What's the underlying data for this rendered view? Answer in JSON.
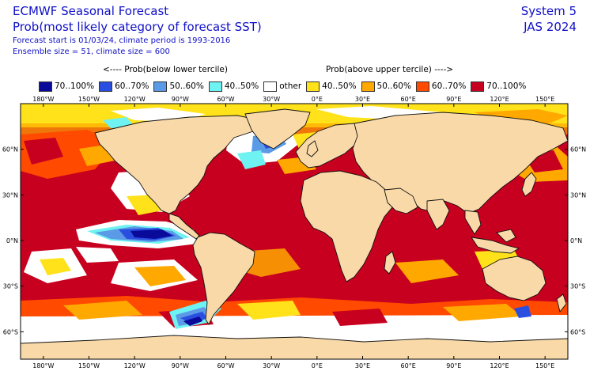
{
  "header": {
    "title": "ECMWF Seasonal Forecast",
    "subtitle": "Prob(most likely category of forecast SST)",
    "info_line1": "Forecast start is 01/03/24, climate period is 1993-2016",
    "info_line2": "Ensemble size = 51, climate size = 600",
    "system": "System 5",
    "period": "JAS 2024"
  },
  "legend": {
    "below_label": "<---- Prob(below lower tercile)",
    "above_label": "Prob(above upper tercile) ---->",
    "items": [
      {
        "label": "70..100%",
        "color": "#0a0a9a"
      },
      {
        "label": "60..70%",
        "color": "#2a4ee0"
      },
      {
        "label": "50..60%",
        "color": "#5a9ae6"
      },
      {
        "label": "40..50%",
        "color": "#6ef2f2"
      },
      {
        "label": "other",
        "color": "#ffffff"
      },
      {
        "label": "40..50%",
        "color": "#ffe21a"
      },
      {
        "label": "50..60%",
        "color": "#ffa800"
      },
      {
        "label": "60..70%",
        "color": "#ff4a00"
      },
      {
        "label": "70..100%",
        "color": "#c80020"
      }
    ]
  },
  "axes": {
    "lon_labels": [
      "180°W",
      "150°W",
      "120°W",
      "90°W",
      "60°W",
      "30°W",
      "0°E",
      "30°E",
      "60°E",
      "90°E",
      "120°E",
      "150°E"
    ],
    "lat_labels": [
      "60°N",
      "30°N",
      "0°N",
      "30°S",
      "60°S"
    ]
  },
  "colors": {
    "land": "#f9d9a8",
    "coast": "#111111"
  }
}
